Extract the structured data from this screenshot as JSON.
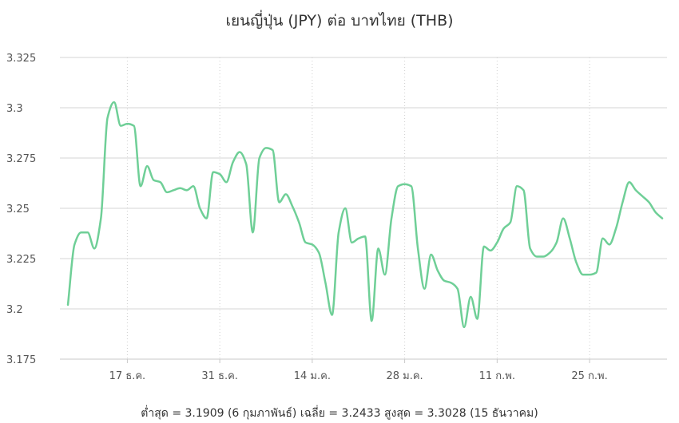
{
  "chart_data": {
    "type": "line",
    "title": "เยนญี่ปุ่น (JPY) ต่อ บาทไทย (THB)",
    "xlabel": "",
    "ylabel": "",
    "ylim": [
      3.175,
      3.325
    ],
    "y_ticks": [
      "3.175",
      "3.2",
      "3.225",
      "3.25",
      "3.275",
      "3.3",
      "3.325"
    ],
    "x_ticks": [
      {
        "label": "17 ธ.ค.",
        "date": "2023-12-17"
      },
      {
        "label": "31 ธ.ค.",
        "date": "2023-12-31"
      },
      {
        "label": "14 ม.ค.",
        "date": "2024-01-14"
      },
      {
        "label": "28 ม.ค.",
        "date": "2024-01-28"
      },
      {
        "label": "11 ก.พ.",
        "date": "2024-02-11"
      },
      {
        "label": "25 ก.พ.",
        "date": "2024-02-25"
      }
    ],
    "grid": true,
    "line_color": "#6fcf97",
    "series": [
      {
        "points": [
          [
            "2023-12-08",
            3.202
          ],
          [
            "2023-12-09",
            3.232
          ],
          [
            "2023-12-10",
            3.238
          ],
          [
            "2023-12-11",
            3.238
          ],
          [
            "2023-12-12",
            3.23
          ],
          [
            "2023-12-13",
            3.245
          ],
          [
            "2023-12-14",
            3.295
          ],
          [
            "2023-12-15",
            3.3028
          ],
          [
            "2023-12-16",
            3.291
          ],
          [
            "2023-12-17",
            3.292
          ],
          [
            "2023-12-18",
            3.291
          ],
          [
            "2023-12-19",
            3.261
          ],
          [
            "2023-12-20",
            3.271
          ],
          [
            "2023-12-21",
            3.264
          ],
          [
            "2023-12-22",
            3.263
          ],
          [
            "2023-12-23",
            3.258
          ],
          [
            "2023-12-24",
            3.259
          ],
          [
            "2023-12-25",
            3.26
          ],
          [
            "2023-12-26",
            3.259
          ],
          [
            "2023-12-27",
            3.261
          ],
          [
            "2023-12-28",
            3.25
          ],
          [
            "2023-12-29",
            3.245
          ],
          [
            "2023-12-30",
            3.268
          ],
          [
            "2023-12-31",
            3.267
          ],
          [
            "2024-01-01",
            3.263
          ],
          [
            "2024-01-02",
            3.273
          ],
          [
            "2024-01-03",
            3.278
          ],
          [
            "2024-01-04",
            3.272
          ],
          [
            "2024-01-05",
            3.238
          ],
          [
            "2024-01-06",
            3.275
          ],
          [
            "2024-01-07",
            3.28
          ],
          [
            "2024-01-08",
            3.279
          ],
          [
            "2024-01-09",
            3.253
          ],
          [
            "2024-01-10",
            3.257
          ],
          [
            "2024-01-11",
            3.251
          ],
          [
            "2024-01-12",
            3.243
          ],
          [
            "2024-01-13",
            3.233
          ],
          [
            "2024-01-14",
            3.232
          ],
          [
            "2024-01-15",
            3.228
          ],
          [
            "2024-01-16",
            3.213
          ],
          [
            "2024-01-17",
            3.197
          ],
          [
            "2024-01-18",
            3.238
          ],
          [
            "2024-01-19",
            3.25
          ],
          [
            "2024-01-20",
            3.233
          ],
          [
            "2024-01-21",
            3.235
          ],
          [
            "2024-01-22",
            3.236
          ],
          [
            "2024-01-23",
            3.194
          ],
          [
            "2024-01-24",
            3.23
          ],
          [
            "2024-01-25",
            3.217
          ],
          [
            "2024-01-26",
            3.245
          ],
          [
            "2024-01-27",
            3.261
          ],
          [
            "2024-01-28",
            3.262
          ],
          [
            "2024-01-29",
            3.261
          ],
          [
            "2024-01-30",
            3.23
          ],
          [
            "2024-01-31",
            3.21
          ],
          [
            "2024-02-01",
            3.227
          ],
          [
            "2024-02-02",
            3.219
          ],
          [
            "2024-02-03",
            3.214
          ],
          [
            "2024-02-04",
            3.213
          ],
          [
            "2024-02-05",
            3.21
          ],
          [
            "2024-02-06",
            3.1909
          ],
          [
            "2024-02-07",
            3.206
          ],
          [
            "2024-02-08",
            3.195
          ],
          [
            "2024-02-09",
            3.231
          ],
          [
            "2024-02-10",
            3.229
          ],
          [
            "2024-02-11",
            3.233
          ],
          [
            "2024-02-12",
            3.24
          ],
          [
            "2024-02-13",
            3.243
          ],
          [
            "2024-02-14",
            3.261
          ],
          [
            "2024-02-15",
            3.259
          ],
          [
            "2024-02-16",
            3.23
          ],
          [
            "2024-02-17",
            3.226
          ],
          [
            "2024-02-18",
            3.226
          ],
          [
            "2024-02-19",
            3.228
          ],
          [
            "2024-02-20",
            3.233
          ],
          [
            "2024-02-21",
            3.245
          ],
          [
            "2024-02-22",
            3.235
          ],
          [
            "2024-02-23",
            3.223
          ],
          [
            "2024-02-24",
            3.217
          ],
          [
            "2024-02-25",
            3.217
          ],
          [
            "2024-02-26",
            3.218
          ],
          [
            "2024-02-27",
            3.235
          ],
          [
            "2024-02-28",
            3.232
          ],
          [
            "2024-02-29",
            3.24
          ],
          [
            "2024-03-01",
            3.253
          ],
          [
            "2024-03-02",
            3.263
          ],
          [
            "2024-03-03",
            3.259
          ],
          [
            "2024-03-04",
            3.256
          ],
          [
            "2024-03-05",
            3.253
          ],
          [
            "2024-03-06",
            3.248
          ],
          [
            "2024-03-07",
            3.245
          ]
        ]
      }
    ]
  },
  "footer": "ต่ำสุด = 3.1909 (6 กุมภาพันธ์) เฉลี่ย = 3.2433 สูงสุด = 3.3028 (15 ธันวาคม)"
}
